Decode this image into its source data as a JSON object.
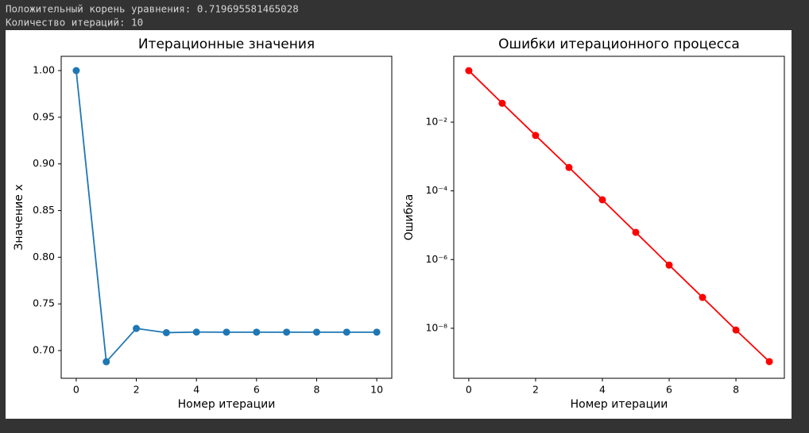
{
  "output_lines": [
    "Положительный корень уравнения: 0.719695581465028",
    "Количество итераций: 10"
  ],
  "chart_data": [
    {
      "type": "line",
      "title": "Итерационные значения",
      "xlabel": "Номер итерации",
      "ylabel": "Значение x",
      "series": [
        {
          "color": "#1f77b4",
          "x": [
            0,
            1,
            2,
            3,
            4,
            5,
            6,
            7,
            8,
            9,
            10
          ],
          "values": [
            1.0,
            0.688,
            0.7237,
            0.7192,
            0.7198,
            0.7197,
            0.7197,
            0.7197,
            0.7197,
            0.7197,
            0.7197
          ]
        }
      ],
      "xlim": [
        -0.5,
        10.5
      ],
      "xticks": [
        0,
        2,
        4,
        6,
        8,
        10
      ],
      "ylim": [
        0.6703,
        1.0153
      ],
      "yticks": [
        {
          "value": 0.7,
          "label": "0.70"
        },
        {
          "value": 0.75,
          "label": "0.75"
        },
        {
          "value": 0.8,
          "label": "0.80"
        },
        {
          "value": 0.85,
          "label": "0.85"
        },
        {
          "value": 0.9,
          "label": "0.90"
        },
        {
          "value": 0.95,
          "label": "0.95"
        },
        {
          "value": 1.0,
          "label": "1.00"
        }
      ],
      "log_y": false
    },
    {
      "type": "line",
      "title": "Ошибки итерационного процесса",
      "xlabel": "Номер итерации",
      "ylabel": "Ошибка",
      "series": [
        {
          "color": "#ff0000",
          "x": [
            0,
            1,
            2,
            3,
            4,
            5,
            6,
            7,
            8,
            9
          ],
          "values": [
            0.316,
            0.0355,
            0.0041,
            0.00048,
            5.5e-05,
            6.2e-06,
            6.9e-07,
            7.9e-08,
            8.9e-09,
            1.07e-09
          ]
        }
      ],
      "xlim": [
        -0.45,
        9.45
      ],
      "xticks": [
        0,
        2,
        4,
        6,
        8
      ],
      "ylim": [
        3.5e-10,
        0.826
      ],
      "yticks": [
        {
          "value": 0.01,
          "label": "10⁻²"
        },
        {
          "value": 0.0001,
          "label": "10⁻⁴"
        },
        {
          "value": 1e-06,
          "label": "10⁻⁶"
        },
        {
          "value": 1e-08,
          "label": "10⁻⁸"
        }
      ],
      "log_y": true
    }
  ]
}
